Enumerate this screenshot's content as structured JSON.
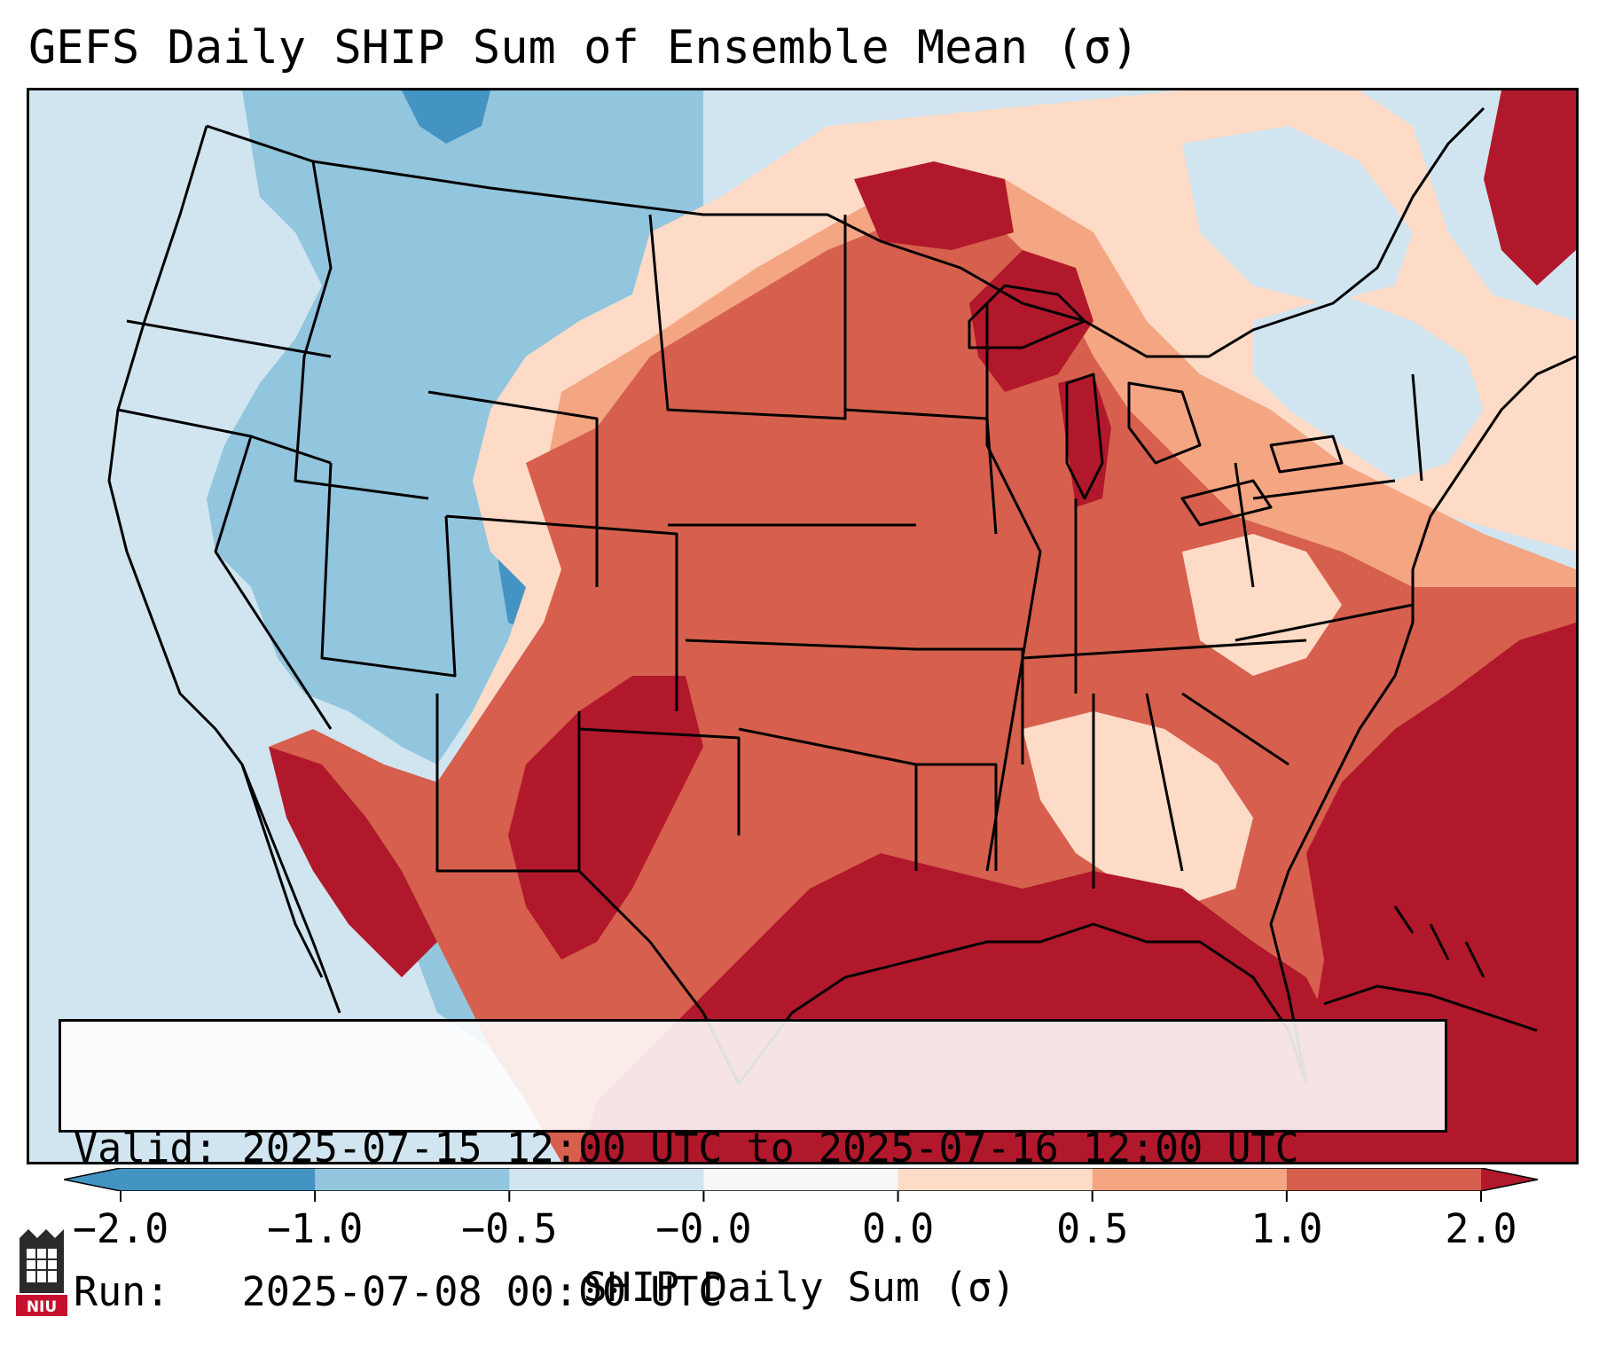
{
  "title": "GEFS Daily SHIP Sum of Ensemble Mean (σ)",
  "info": {
    "valid_label": "Valid:",
    "valid_value": "2025-07-15 12:00 UTC to 2025-07-16 12:00 UTC",
    "run_label": "Run:",
    "run_value": "2025-07-08 00:00 UTC"
  },
  "colorbar": {
    "label": "SHIP Daily Sum (σ)",
    "ticks": [
      "−2.0",
      "−1.0",
      "−0.5",
      "−0.0",
      "0.0",
      "0.5",
      "1.0",
      "2.0"
    ],
    "bins": [
      {
        "range": "below -2.0",
        "color": "#4393c3"
      },
      {
        "range": "-2.0 to -1.0",
        "color": "#4393c3"
      },
      {
        "range": "-1.0 to -0.5",
        "color": "#92c5de"
      },
      {
        "range": "-0.5 to -0.0",
        "color": "#d1e5f0"
      },
      {
        "range": "-0.0 to 0.0",
        "color": "#f7f7f7"
      },
      {
        "range": "0.0 to 0.5",
        "color": "#fddbc7"
      },
      {
        "range": "0.5 to 1.0",
        "color": "#f4a582"
      },
      {
        "range": "1.0 to 2.0",
        "color": "#d6604d"
      },
      {
        "range": "above 2.0",
        "color": "#b2182b"
      }
    ]
  },
  "logo": {
    "text": "NIU",
    "icon": "niu-university-logo-icon"
  },
  "regions": {
    "west_coast": "weak negative",
    "great_basin_rockies": "negative",
    "northern_plains": "weak positive",
    "central_plains_midwest": "positive",
    "southern_plains_gulf": "strong positive",
    "northeast_canada": "mixed weak",
    "atlantic_ocean": "strong positive"
  }
}
